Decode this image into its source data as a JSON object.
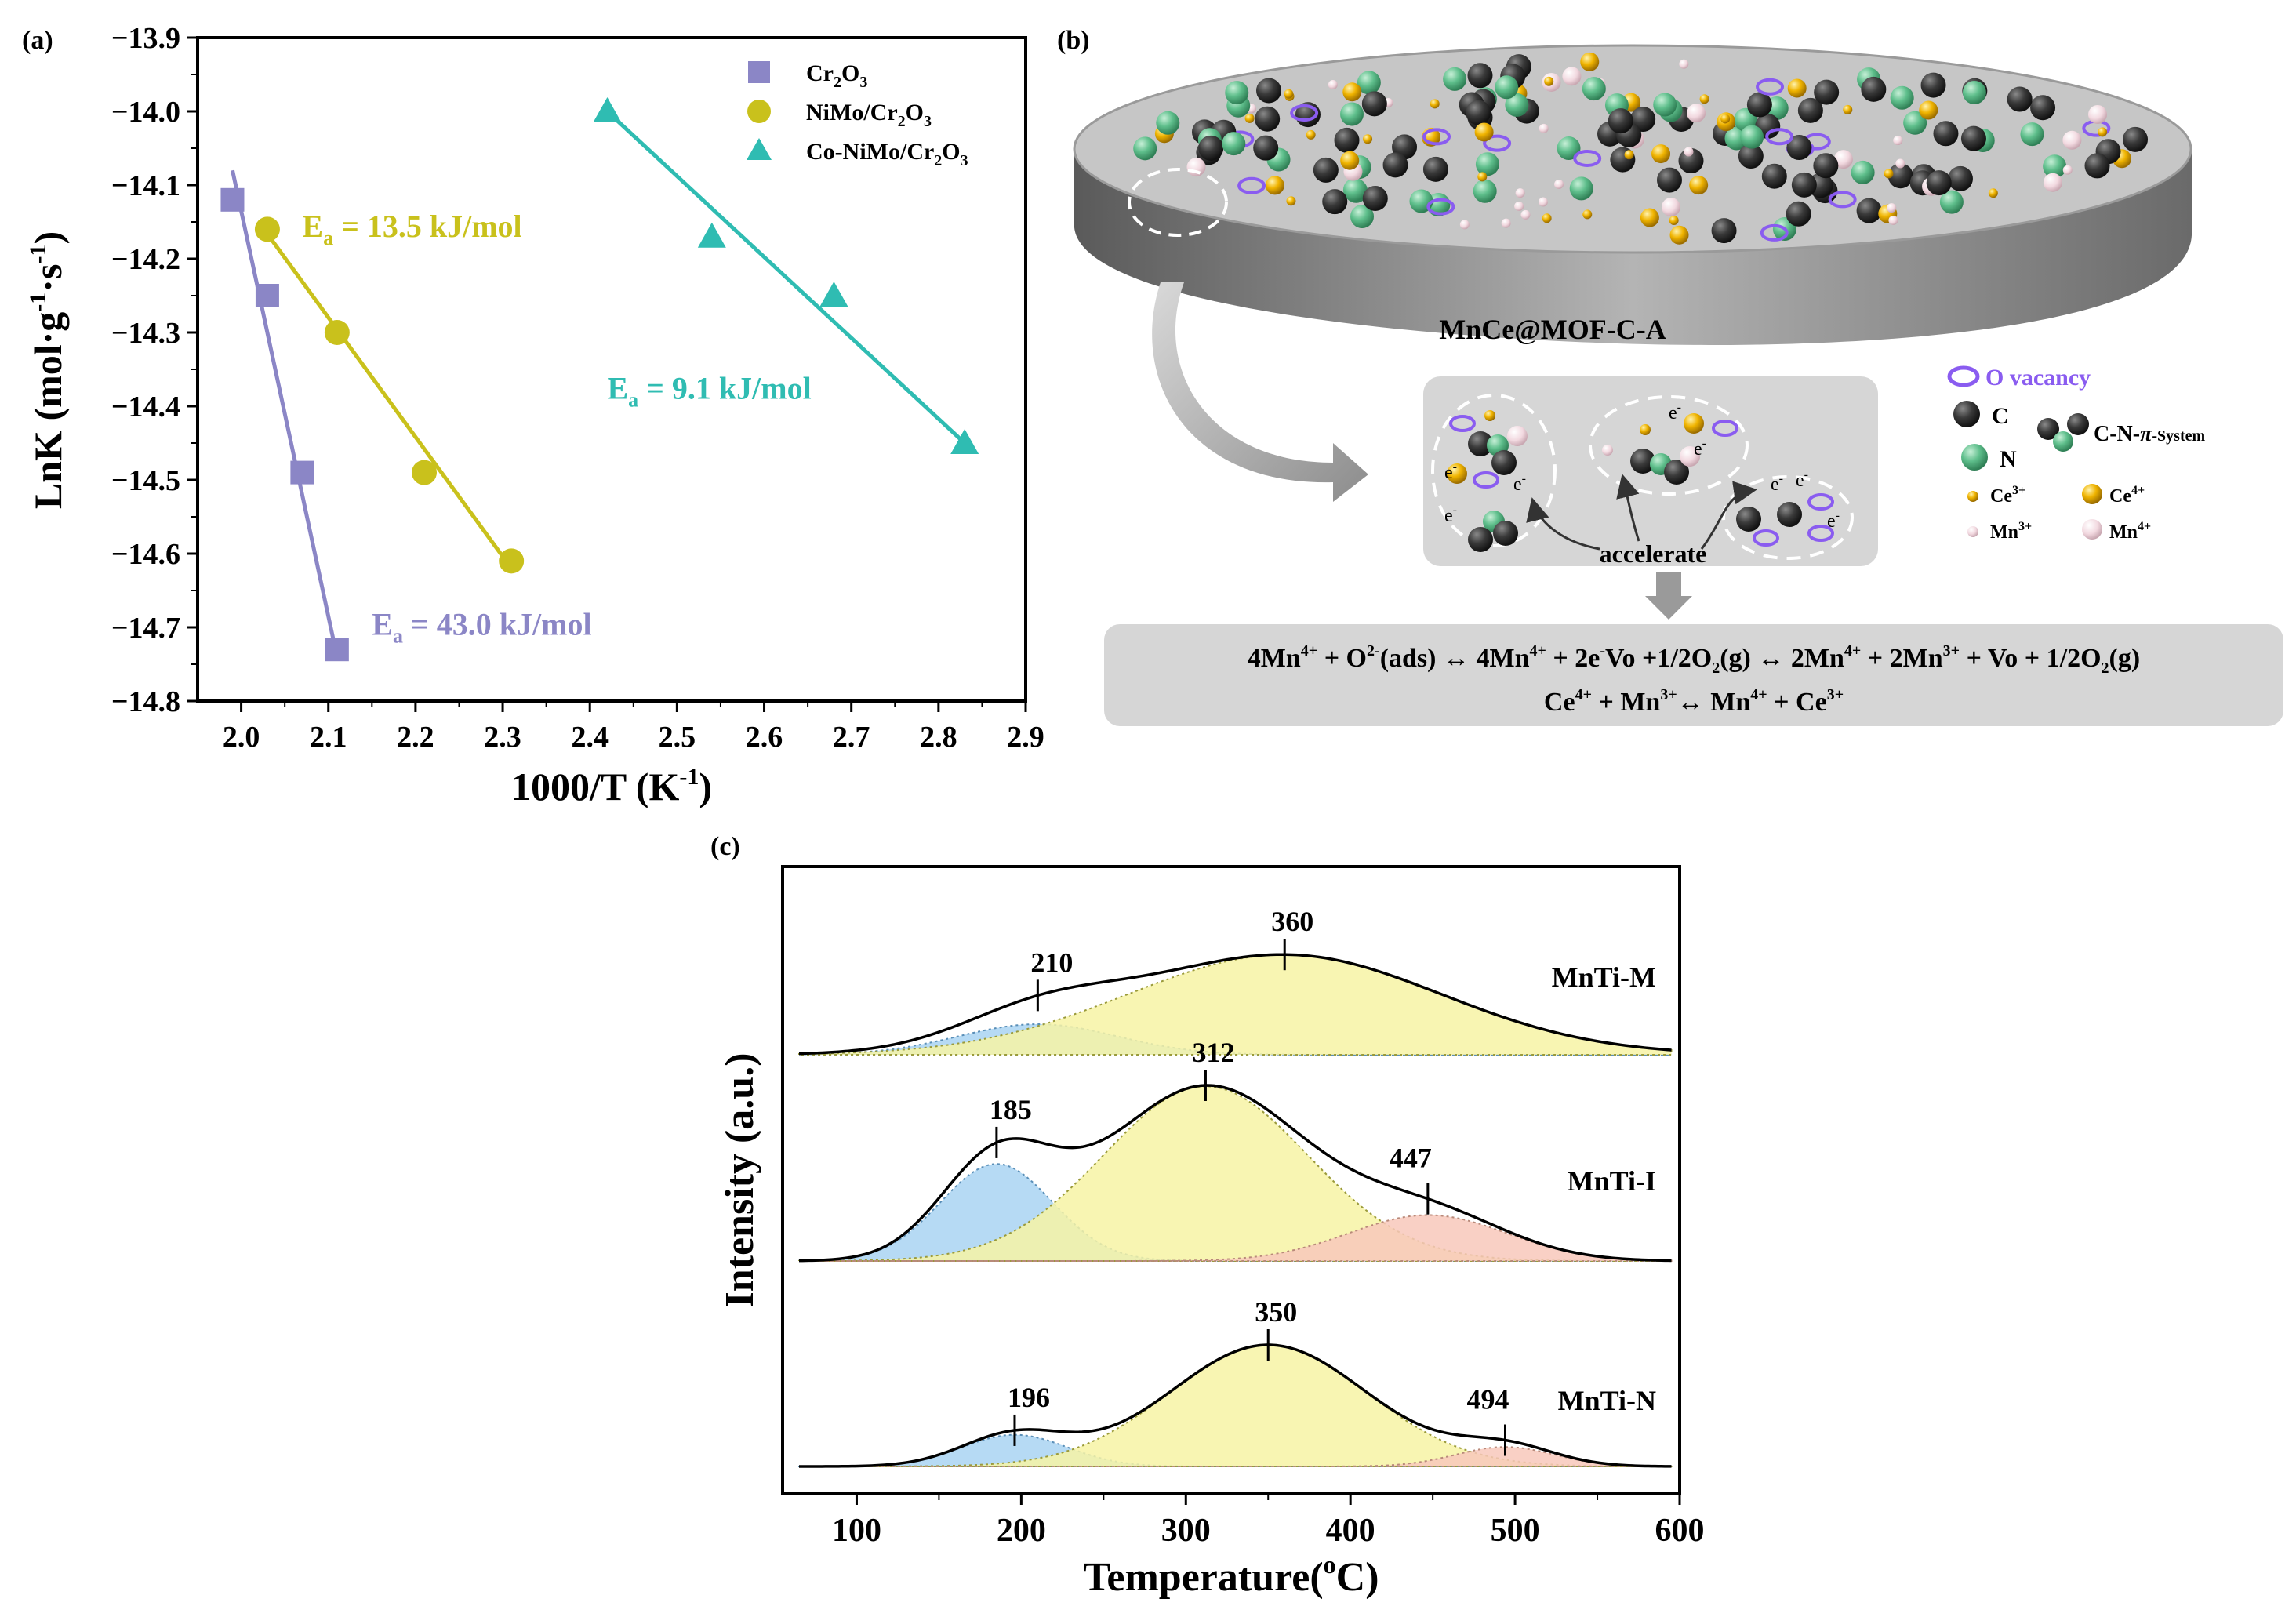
{
  "panels": {
    "a": {
      "label": "(a)"
    },
    "b": {
      "label": "(b)"
    },
    "c": {
      "label": "(c)"
    }
  },
  "chart_data": [
    {
      "panel": "a",
      "type": "scatter",
      "title": "",
      "xlabel": "1000/T (K",
      "xlabel_sup": "-1",
      "xlabel_end": ")",
      "ylabel": "LnK (mol·g",
      "ylabel_sup1": "-1",
      "ylabel_mid": "·s",
      "ylabel_sup2": "-1",
      "ylabel_end": ")",
      "xlim": [
        1.95,
        2.9
      ],
      "ylim": [
        -14.8,
        -13.9
      ],
      "xticks": [
        "2.0",
        "2.1",
        "2.2",
        "2.3",
        "2.4",
        "2.5",
        "2.6",
        "2.7",
        "2.8",
        "2.9"
      ],
      "yticks": [
        "−13.9",
        "−14.0",
        "−14.1",
        "−14.2",
        "−14.3",
        "−14.4",
        "−14.5",
        "−14.6",
        "−14.7",
        "−14.8"
      ],
      "legend_position": "top-right",
      "series": [
        {
          "name": "Cr2O3",
          "legend_base": "Cr",
          "legend_sub1": "2",
          "legend_mid": "O",
          "legend_sub2": "3",
          "legend_pre": "",
          "marker": "square",
          "color": "#8b86c6",
          "x": [
            1.99,
            2.03,
            2.07,
            2.11
          ],
          "y": [
            -14.12,
            -14.25,
            -14.49,
            -14.73
          ],
          "fit_x": [
            1.99,
            2.11
          ],
          "fit_y": [
            -14.08,
            -14.74
          ],
          "annotation": {
            "prefix": "E",
            "sub": "a",
            "text": " = 43.0 kJ/mol",
            "at": [
              2.15,
              -14.71
            ]
          }
        },
        {
          "name": "NiMo/Cr2O3",
          "legend_pre": "NiMo/",
          "legend_base": "Cr",
          "legend_sub1": "2",
          "legend_mid": "O",
          "legend_sub2": "3",
          "marker": "circle",
          "color": "#c9c11c",
          "x": [
            2.03,
            2.11,
            2.21,
            2.31
          ],
          "y": [
            -14.16,
            -14.3,
            -14.49,
            -14.61
          ],
          "fit_x": [
            2.02,
            2.31
          ],
          "fit_y": [
            -14.15,
            -14.62
          ],
          "annotation": {
            "prefix": "E",
            "sub": "a",
            "text": " = 13.5 kJ/mol",
            "at": [
              2.07,
              -14.17
            ]
          }
        },
        {
          "name": "Co-NiMo/Cr2O3",
          "legend_pre": "Co-NiMo/",
          "legend_base": "Cr",
          "legend_sub1": "2",
          "legend_mid": "O",
          "legend_sub2": "3",
          "marker": "triangle",
          "color": "#2fbcb2",
          "x": [
            2.42,
            2.54,
            2.68,
            2.83
          ],
          "y": [
            -14.0,
            -14.17,
            -14.25,
            -14.45
          ],
          "fit_x": [
            2.42,
            2.83
          ],
          "fit_y": [
            -14.0,
            -14.45
          ],
          "annotation": {
            "prefix": "E",
            "sub": "a",
            "text": " = 9.1 kJ/mol",
            "at": [
              2.42,
              -14.39
            ]
          }
        }
      ]
    },
    {
      "panel": "c",
      "type": "area",
      "title": "",
      "xlabel": "Temperature(",
      "xlabel_sup": "o",
      "xlabel_end": "C)",
      "ylabel": "Intensity (a.u.)",
      "xlim": [
        55,
        600
      ],
      "xticks": [
        "100",
        "200",
        "300",
        "400",
        "500",
        "600"
      ],
      "components_colors": {
        "blue": "#a9d4f2",
        "yellow": "#f7f3a4",
        "red": "#f8c8bb"
      },
      "series": [
        {
          "name": "MnTi-M",
          "peaks": [
            {
              "center": 210,
              "height": 0.26,
              "width": 48,
              "color": "blue",
              "label": "210"
            },
            {
              "center": 360,
              "height": 0.85,
              "width": 95,
              "color": "yellow",
              "label": "360"
            }
          ]
        },
        {
          "name": "MnTi-I",
          "peaks": [
            {
              "center": 185,
              "height": 0.55,
              "width": 34,
              "color": "blue",
              "label": "185"
            },
            {
              "center": 312,
              "height": 0.99,
              "width": 62,
              "color": "yellow",
              "label": "312"
            },
            {
              "center": 447,
              "height": 0.26,
              "width": 48,
              "color": "red",
              "label": "447"
            }
          ]
        },
        {
          "name": "MnTi-N",
          "peaks": [
            {
              "center": 196,
              "height": 0.26,
              "width": 32,
              "color": "blue",
              "label": "196"
            },
            {
              "center": 350,
              "height": 1.0,
              "width": 60,
              "color": "yellow",
              "label": "350"
            },
            {
              "center": 494,
              "height": 0.16,
              "width": 30,
              "color": "red",
              "label": "494"
            }
          ]
        }
      ]
    }
  ],
  "schematic": {
    "disk_label": "MnCe@MOF-C-A",
    "accelerate": "accelerate",
    "electron": "e",
    "electron_sup": "-",
    "legend": {
      "o_vacancy": "O vacancy",
      "c": "C",
      "n": "N",
      "cn_system_base": "C-N-",
      "cn_system_pi": "π",
      "cn_system_sub": "-System",
      "ce3": "Ce",
      "ce3_sup": "3+",
      "ce4": "Ce",
      "ce4_sup": "4+",
      "mn3": "Mn",
      "mn3_sup": "3+",
      "mn4": "Mn",
      "mn4_sup": "4+"
    },
    "equation1": {
      "a": "4Mn",
      "a_sup": "4+",
      "b": " + O",
      "b_sup": "2-",
      "c": "(ads) ↔ 4Mn",
      "c_sup": "4+",
      "d": " + 2e",
      "d_sup": "-",
      "e": "Vo +1/2O",
      "e_sub": "2",
      "f": "(g)  ↔ 2Mn",
      "f_sup": "4+",
      "g": " + 2Mn",
      "g_sup": "3+",
      "h": " + Vo + 1/2O",
      "h_sub": "2",
      "i": "(g)"
    },
    "equation2": {
      "a": "Ce",
      "a_sup": "4+",
      "b": " + Mn",
      "b_sup": "3+",
      "c": "↔ Mn",
      "c_sup": "4+",
      "d": " + Ce",
      "d_sup": "3+"
    },
    "colors": {
      "c_atom": "#333333",
      "n_atom": "#5fbf8c",
      "ce3": "#e3a800",
      "ce4": "#f0b400",
      "mn3": "#e9d6dc",
      "mn4": "#f5dde3",
      "vacancy": "#8a5cf0",
      "disk_top": "#c4c4c4",
      "panel_bg": "#d6d6d6"
    }
  }
}
